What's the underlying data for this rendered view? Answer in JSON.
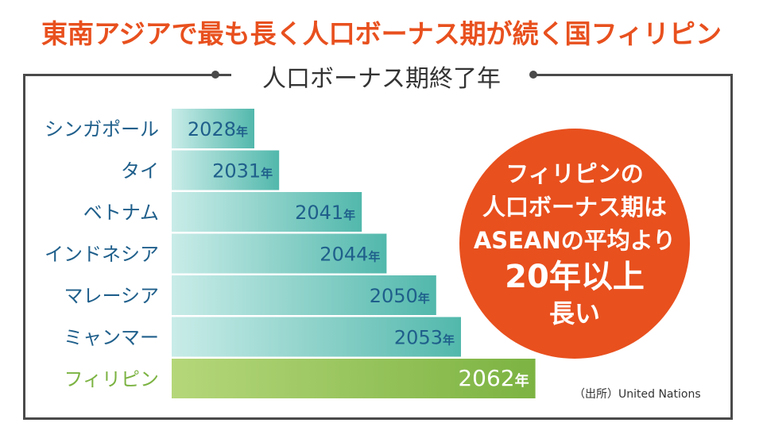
{
  "title": "東南アジアで最も長く人口ボーナス期が続く国フィリピン",
  "subtitle": "人口ボーナス期終了年",
  "callout": {
    "line1": "フィリピンの",
    "line2": "人口ボーナス期は",
    "line3": "ASEANの平均より",
    "line4": "20年以上",
    "line5": "長い"
  },
  "source": "（出所）United Nations",
  "year_suffix": "年",
  "colors": {
    "title": "#e8501e",
    "label_default": "#1f5f8b",
    "label_highlight": "#7cb342",
    "bar_start": "#c9ece8",
    "bar_end": "#52b8ac",
    "bar_highlight_start": "#b5d77a",
    "bar_highlight_end": "#7cb342",
    "callout_bg": "#e8501e"
  },
  "chart_data": {
    "type": "bar",
    "orientation": "horizontal",
    "categories": [
      "シンガポール",
      "タイ",
      "ベトナム",
      "インドネシア",
      "マレーシア",
      "ミャンマー",
      "フィリピン"
    ],
    "values": [
      2028,
      2031,
      2041,
      2044,
      2050,
      2053,
      2062
    ],
    "highlight": "フィリピン",
    "title": "人口ボーナス期終了年",
    "xlabel": "",
    "ylabel": "",
    "grid": false
  }
}
